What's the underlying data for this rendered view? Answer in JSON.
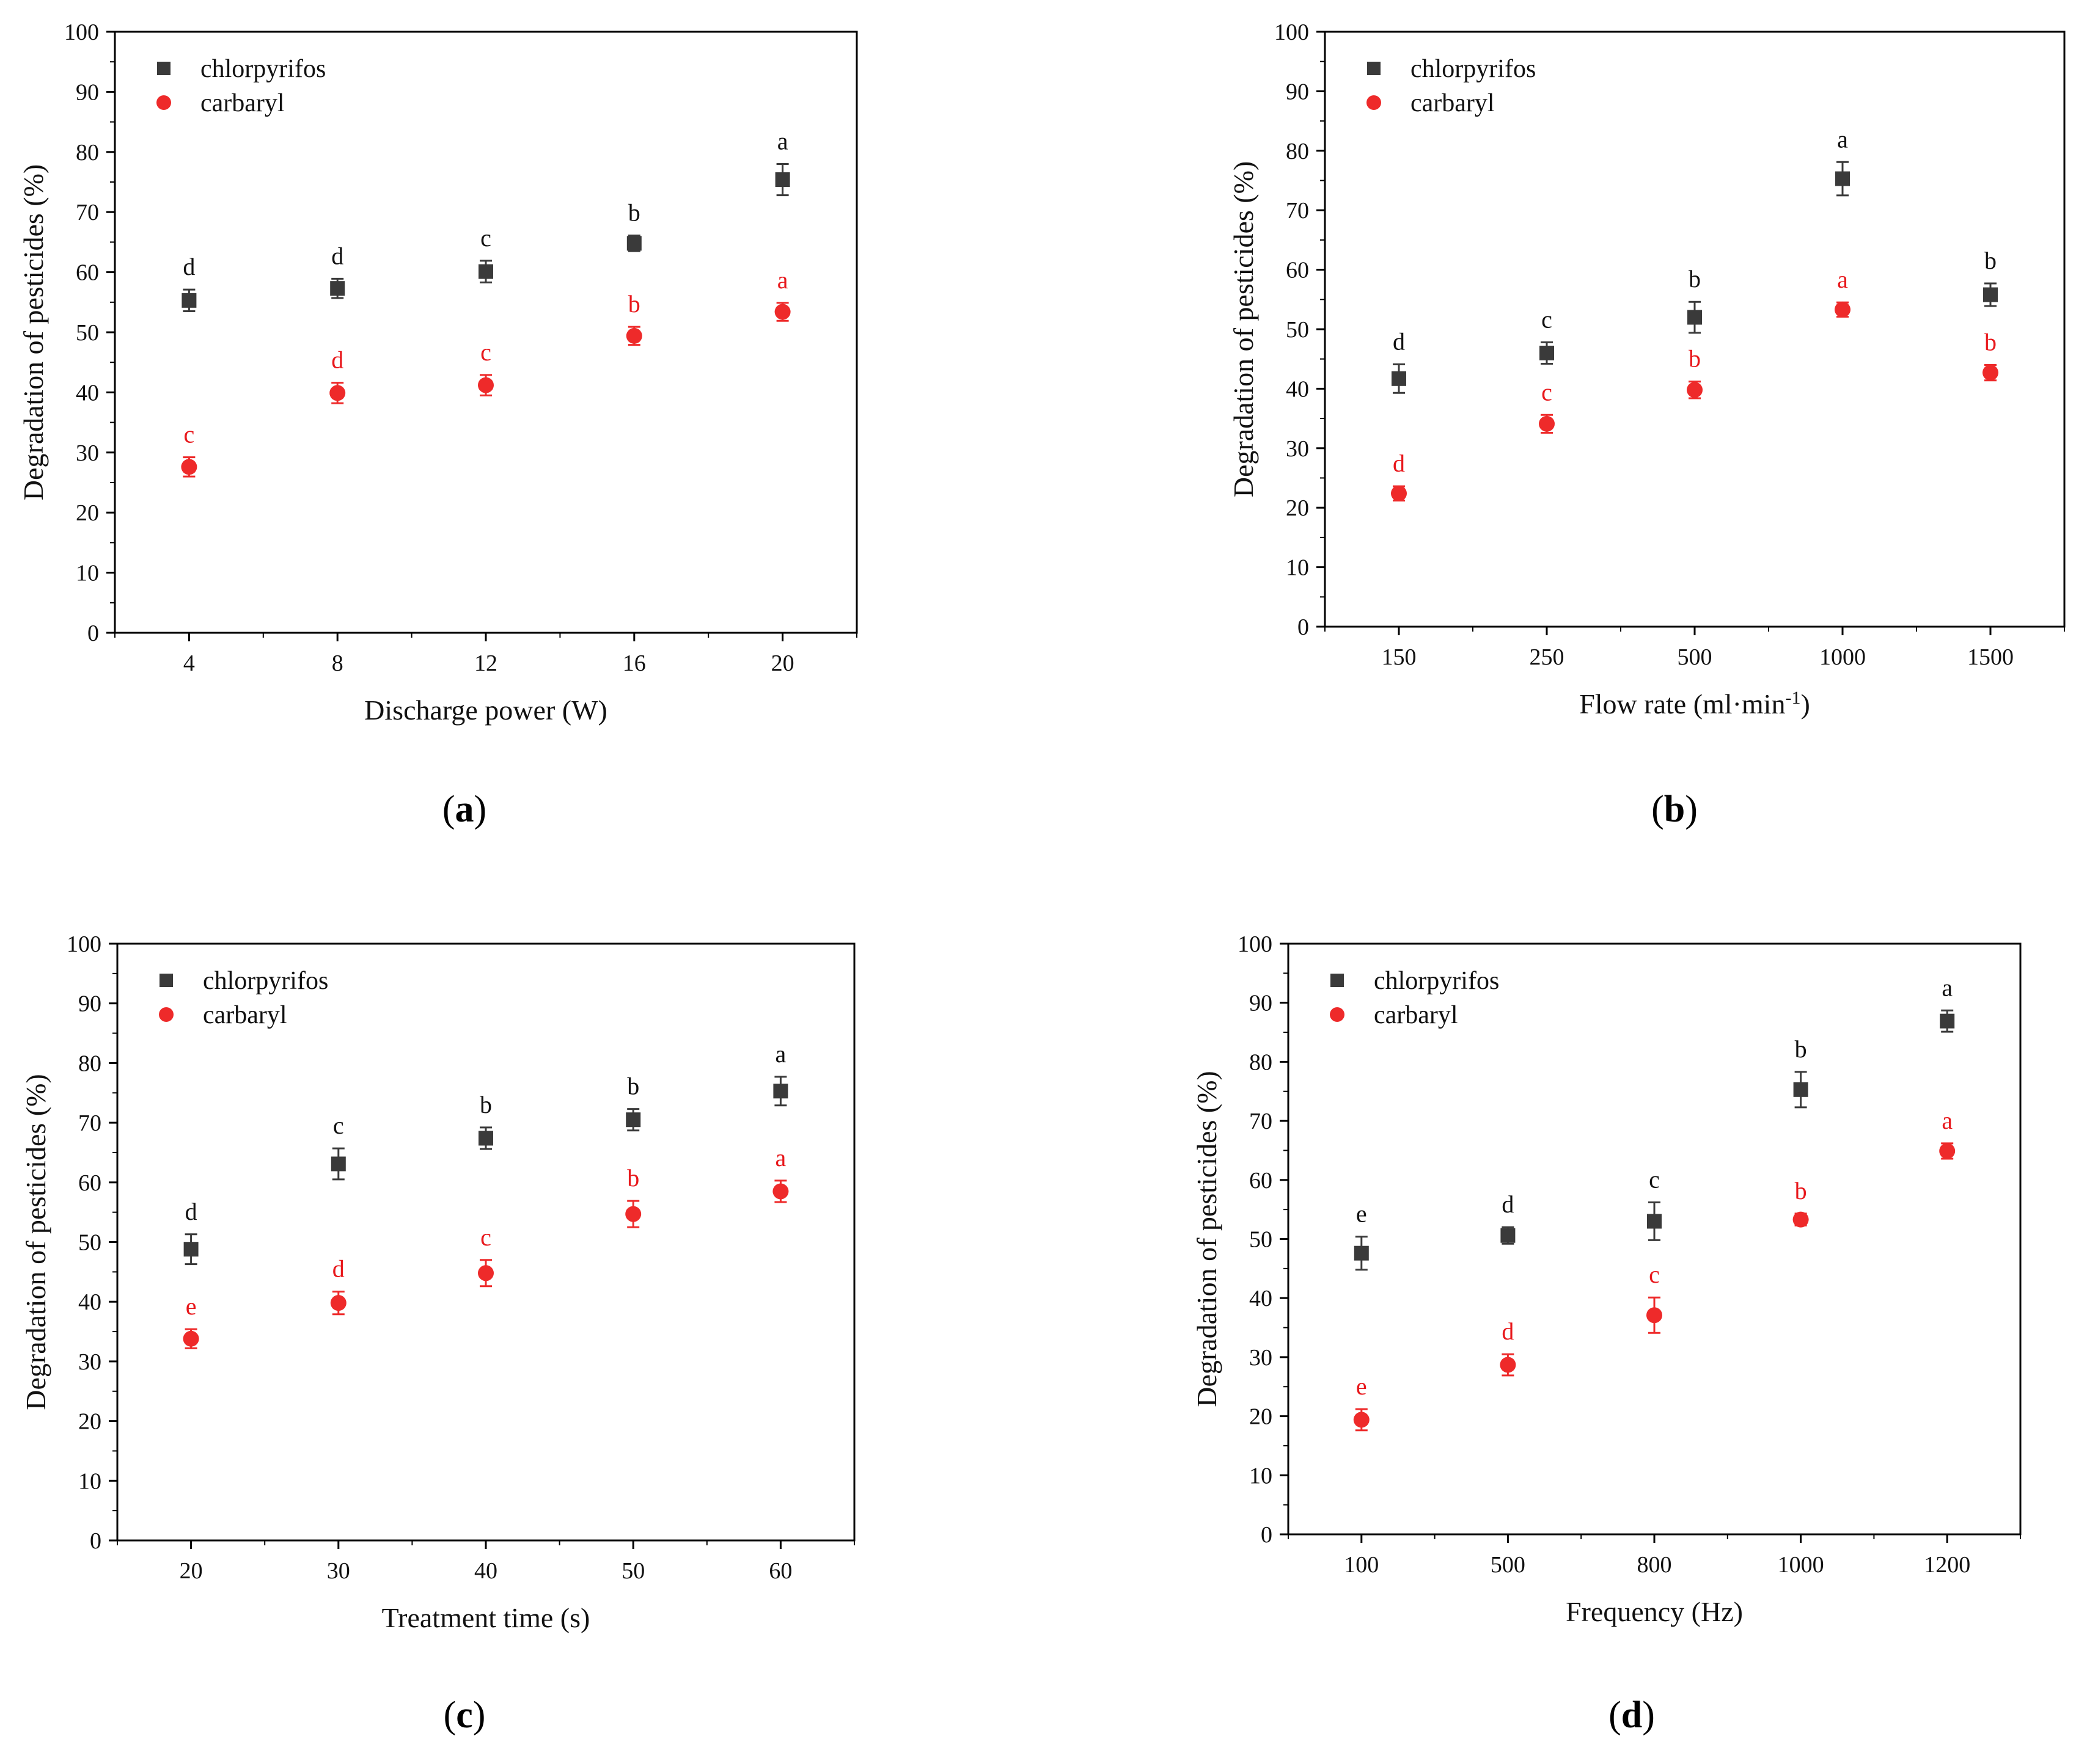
{
  "figure": {
    "panel_ids": [
      "a",
      "b",
      "c",
      "d"
    ]
  },
  "colors": {
    "chlorpyrifos": "#3a3a3a",
    "carbaryl": "#ee2a2a",
    "letter_chlorpyrifos": "#111111",
    "letter_carbaryl": "#e8181c",
    "axis": "#000000"
  },
  "chart_data": [
    {
      "id": "a",
      "caption": "a",
      "type": "scatter",
      "xlabel": "Discharge power (W)",
      "ylabel": "Degradation of pesticides (%)",
      "ylim": [
        0,
        100
      ],
      "yticks": [
        "0",
        "10",
        "20",
        "30",
        "40",
        "50",
        "60",
        "70",
        "80",
        "90",
        "100"
      ],
      "categories": [
        "4",
        "8",
        "12",
        "16",
        "20"
      ],
      "legend": {
        "position": "top-left",
        "entries": [
          "chlorpyrifos",
          "carbaryl"
        ]
      },
      "series": [
        {
          "name": "chlorpyrifos",
          "marker": "square",
          "values": [
            55.3,
            57.3,
            60.1,
            64.8,
            75.4
          ],
          "errors": [
            1.8,
            1.6,
            1.8,
            1.3,
            2.6
          ],
          "letters": [
            "d",
            "d",
            "c",
            "b",
            "a"
          ]
        },
        {
          "name": "carbaryl",
          "marker": "circle",
          "values": [
            27.6,
            39.9,
            41.2,
            49.4,
            53.4
          ],
          "errors": [
            1.6,
            1.7,
            1.7,
            1.5,
            1.5
          ],
          "letters": [
            "c",
            "d",
            "c",
            "b",
            "a"
          ]
        }
      ]
    },
    {
      "id": "b",
      "caption": "b",
      "type": "scatter",
      "xlabel_main": "Flow rate (ml·min",
      "xlabel_sup": "-1",
      "xlabel_tail": ")",
      "ylabel": "Degradation of pesticides (%)",
      "ylim": [
        0,
        100
      ],
      "yticks": [
        "0",
        "10",
        "20",
        "30",
        "40",
        "50",
        "60",
        "70",
        "80",
        "90",
        "100"
      ],
      "categories": [
        "150",
        "250",
        "500",
        "1000",
        "1500"
      ],
      "legend": {
        "position": "top-left",
        "entries": [
          "chlorpyrifos",
          "carbaryl"
        ]
      },
      "series": [
        {
          "name": "chlorpyrifos",
          "marker": "square",
          "values": [
            41.7,
            46.0,
            52.0,
            75.3,
            55.8
          ],
          "errors": [
            2.4,
            1.8,
            2.6,
            2.8,
            1.9
          ],
          "letters": [
            "d",
            "c",
            "b",
            "a",
            "b"
          ]
        },
        {
          "name": "carbaryl",
          "marker": "circle",
          "values": [
            22.4,
            34.1,
            39.8,
            53.3,
            42.7
          ],
          "errors": [
            1.2,
            1.5,
            1.4,
            1.2,
            1.3
          ],
          "letters": [
            "d",
            "c",
            "b",
            "a",
            "b"
          ]
        }
      ]
    },
    {
      "id": "c",
      "caption": "c",
      "type": "scatter",
      "xlabel": "Treatment time (s)",
      "ylabel": "Degradation of pesticides (%)",
      "ylim": [
        0,
        100
      ],
      "yticks": [
        "0",
        "10",
        "20",
        "30",
        "40",
        "50",
        "60",
        "70",
        "80",
        "90",
        "100"
      ],
      "categories": [
        "20",
        "30",
        "40",
        "50",
        "60"
      ],
      "legend": {
        "position": "top-left",
        "entries": [
          "chlorpyrifos",
          "carbaryl"
        ]
      },
      "series": [
        {
          "name": "chlorpyrifos",
          "marker": "square",
          "values": [
            48.8,
            63.1,
            67.4,
            70.5,
            75.3
          ],
          "errors": [
            2.5,
            2.6,
            1.8,
            1.8,
            2.4
          ],
          "letters": [
            "d",
            "c",
            "b",
            "b",
            "a"
          ]
        },
        {
          "name": "carbaryl",
          "marker": "circle",
          "values": [
            33.8,
            39.8,
            44.8,
            54.7,
            58.5
          ],
          "errors": [
            1.6,
            1.9,
            2.2,
            2.2,
            1.8
          ],
          "letters": [
            "e",
            "d",
            "c",
            "b",
            "a"
          ]
        }
      ]
    },
    {
      "id": "d",
      "caption": "d",
      "type": "scatter",
      "xlabel": "Frequency (Hz)",
      "ylabel": "Degradation of pesticides (%)",
      "ylim": [
        0,
        100
      ],
      "yticks": [
        "0",
        "10",
        "20",
        "30",
        "40",
        "50",
        "60",
        "70",
        "80",
        "90",
        "100"
      ],
      "categories": [
        "100",
        "500",
        "800",
        "1000",
        "1200"
      ],
      "legend": {
        "position": "top-left",
        "entries": [
          "chlorpyrifos",
          "carbaryl"
        ]
      },
      "series": [
        {
          "name": "chlorpyrifos",
          "marker": "square",
          "values": [
            47.6,
            50.6,
            53.0,
            75.3,
            86.9
          ],
          "errors": [
            2.8,
            1.4,
            3.2,
            3.0,
            1.8
          ],
          "letters": [
            "e",
            "d",
            "c",
            "b",
            "a"
          ]
        },
        {
          "name": "carbaryl",
          "marker": "circle",
          "values": [
            19.4,
            28.7,
            37.1,
            53.3,
            64.9
          ],
          "errors": [
            1.8,
            1.8,
            3.0,
            1.0,
            1.3
          ],
          "letters": [
            "e",
            "d",
            "c",
            "b",
            "a"
          ]
        }
      ]
    }
  ]
}
